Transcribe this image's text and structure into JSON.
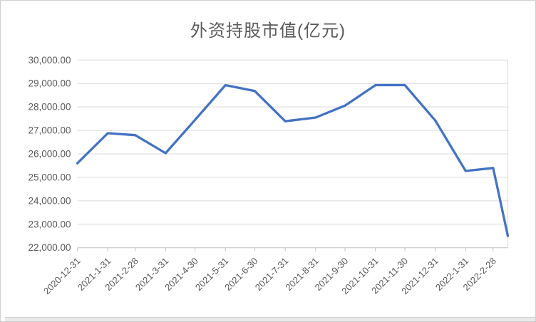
{
  "chart_data": {
    "type": "line",
    "title": "外资持股市值(亿元)",
    "legend": "none",
    "grid": true,
    "ylim": [
      22000,
      30000
    ],
    "y_tick_step": 1000,
    "y_tick_labels": [
      "30,000.00",
      "29,000.00",
      "28,000.00",
      "27,000.00",
      "26,000.00",
      "25,000.00",
      "24,000.00",
      "23,000.00",
      "22,000.00"
    ],
    "x_axis_type": "date-scaled",
    "x_total_days": 439,
    "points": [
      {
        "label": "2020-12-31",
        "day": 0,
        "value": 25600
      },
      {
        "label": "2021-1-31",
        "day": 31,
        "value": 26880
      },
      {
        "label": "2021-2-28",
        "day": 59,
        "value": 26800
      },
      {
        "label": "2021-3-31",
        "day": 90,
        "value": 26030
      },
      {
        "label": "2021-4-30",
        "day": 120,
        "value": 27450
      },
      {
        "label": "2021-5-31",
        "day": 151,
        "value": 28930
      },
      {
        "label": "2021-6-30",
        "day": 181,
        "value": 28680
      },
      {
        "label": "2021-7-31",
        "day": 212,
        "value": 27390
      },
      {
        "label": "2021-8-31",
        "day": 243,
        "value": 27550
      },
      {
        "label": "2021-9-30",
        "day": 273,
        "value": 28060
      },
      {
        "label": "2021-10-31",
        "day": 304,
        "value": 28930
      },
      {
        "label": "2021-11-30",
        "day": 334,
        "value": 28930
      },
      {
        "label": "2021-12-31",
        "day": 365,
        "value": 27420
      },
      {
        "label": "2022-1-31",
        "day": 396,
        "value": 25270
      },
      {
        "label": "2022-2-28",
        "day": 424,
        "value": 25400
      },
      {
        "label": "",
        "day": 439,
        "value": 22500
      }
    ],
    "colors": {
      "line": "#4472C4",
      "grid": "#d9d9d9",
      "axis": "#c0c0c0",
      "tick": "#c0c0c0",
      "labels": "#595959",
      "title": "#595959",
      "background": "#ffffff"
    }
  }
}
